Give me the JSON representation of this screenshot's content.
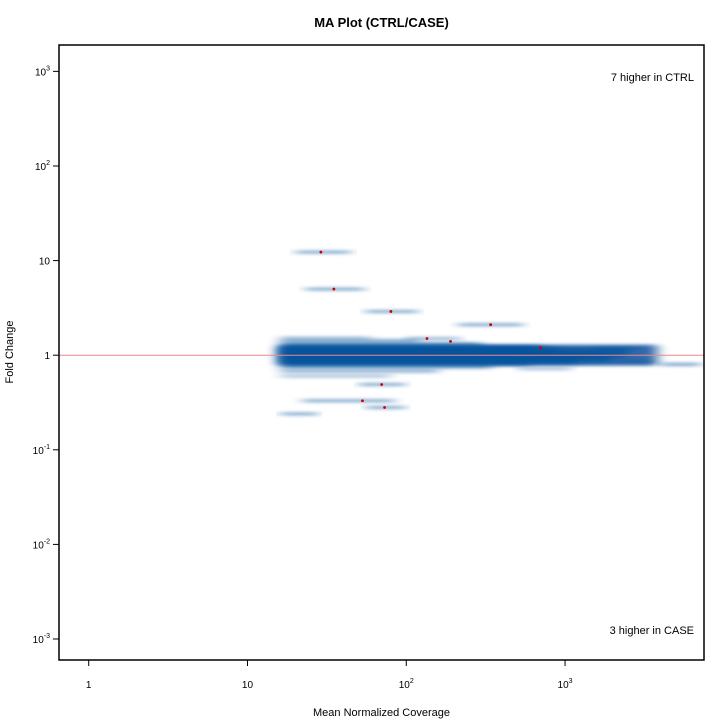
{
  "chart_data": {
    "type": "scatter",
    "title": "MA Plot (CTRL/CASE)",
    "xlabel": "Mean Normalized Coverage",
    "ylabel": "Fold Change",
    "x_scale": "log",
    "y_scale": "log",
    "xlim": [
      0.65,
      7500
    ],
    "ylim": [
      0.0006,
      1900
    ],
    "x_ticks": [
      {
        "value": 1,
        "base": "1",
        "exp": ""
      },
      {
        "value": 10,
        "base": "10",
        "exp": ""
      },
      {
        "value": 100,
        "base": "10",
        "exp": "2"
      },
      {
        "value": 1000,
        "base": "10",
        "exp": "3"
      }
    ],
    "y_ticks": [
      {
        "value": 0.001,
        "base": "10",
        "exp": "-3"
      },
      {
        "value": 0.01,
        "base": "10",
        "exp": "-2"
      },
      {
        "value": 0.1,
        "base": "10",
        "exp": "-1"
      },
      {
        "value": 1,
        "base": "1",
        "exp": ""
      },
      {
        "value": 10,
        "base": "10",
        "exp": ""
      },
      {
        "value": 100,
        "base": "10",
        "exp": "2"
      },
      {
        "value": 1000,
        "base": "10",
        "exp": "3"
      }
    ],
    "reference_line": {
      "y": 1,
      "color": "#ee8888"
    },
    "annotations": {
      "upper": "7 higher in CTRL",
      "lower": "3 higher in CASE"
    },
    "highlighted_points": [
      {
        "x": 29,
        "y": 12.3
      },
      {
        "x": 35,
        "y": 5.0
      },
      {
        "x": 80,
        "y": 2.9
      },
      {
        "x": 135,
        "y": 1.5
      },
      {
        "x": 190,
        "y": 1.4
      },
      {
        "x": 340,
        "y": 2.1
      },
      {
        "x": 700,
        "y": 1.2
      },
      {
        "x": 70,
        "y": 0.49
      },
      {
        "x": 53,
        "y": 0.33
      },
      {
        "x": 73,
        "y": 0.28
      }
    ],
    "density_segments": [
      {
        "x1": 16,
        "x2": 3800,
        "y": 1.0,
        "w": 0.11,
        "o": 0.85
      },
      {
        "x1": 16,
        "x2": 2500,
        "y": 1.06,
        "w": 0.05,
        "o": 0.7
      },
      {
        "x1": 16,
        "x2": 2000,
        "y": 0.94,
        "w": 0.05,
        "o": 0.7
      },
      {
        "x1": 16,
        "x2": 900,
        "y": 1.12,
        "w": 0.04,
        "o": 0.6
      },
      {
        "x1": 16,
        "x2": 1200,
        "y": 0.88,
        "w": 0.04,
        "o": 0.55
      },
      {
        "x1": 16,
        "x2": 700,
        "y": 1.2,
        "w": 0.03,
        "o": 0.55
      },
      {
        "x1": 16,
        "x2": 600,
        "y": 0.82,
        "w": 0.03,
        "o": 0.5
      },
      {
        "x1": 16,
        "x2": 300,
        "y": 1.3,
        "w": 0.025,
        "o": 0.5
      },
      {
        "x1": 16,
        "x2": 350,
        "y": 0.76,
        "w": 0.025,
        "o": 0.45
      },
      {
        "x1": 16,
        "x2": 120,
        "y": 1.42,
        "w": 0.02,
        "o": 0.45
      },
      {
        "x1": 16,
        "x2": 160,
        "y": 0.68,
        "w": 0.02,
        "o": 0.4
      },
      {
        "x1": 16,
        "x2": 60,
        "y": 1.52,
        "w": 0.015,
        "o": 0.35
      },
      {
        "x1": 16,
        "x2": 80,
        "y": 0.6,
        "w": 0.015,
        "o": 0.35
      },
      {
        "x1": 100,
        "x2": 220,
        "y": 1.5,
        "w": 0.015,
        "o": 0.4
      },
      {
        "x1": 1500,
        "x2": 3000,
        "y": 1.17,
        "w": 0.015,
        "o": 0.45
      },
      {
        "x1": 2000,
        "x2": 3500,
        "y": 0.86,
        "w": 0.015,
        "o": 0.4
      },
      {
        "x1": 4000,
        "x2": 7200,
        "y": 0.8,
        "w": 0.012,
        "o": 0.55
      },
      {
        "x1": 500,
        "x2": 1100,
        "y": 0.72,
        "w": 0.012,
        "o": 0.35
      },
      {
        "x1": 20,
        "x2": 45,
        "y": 12.3,
        "w": 0.012,
        "o": 0.5
      },
      {
        "x1": 23,
        "x2": 55,
        "y": 5.0,
        "w": 0.012,
        "o": 0.5
      },
      {
        "x1": 55,
        "x2": 120,
        "y": 2.9,
        "w": 0.012,
        "o": 0.5
      },
      {
        "x1": 210,
        "x2": 550,
        "y": 2.1,
        "w": 0.012,
        "o": 0.5
      },
      {
        "x1": 50,
        "x2": 100,
        "y": 0.49,
        "w": 0.012,
        "o": 0.5
      },
      {
        "x1": 22,
        "x2": 85,
        "y": 0.33,
        "w": 0.012,
        "o": 0.5
      },
      {
        "x1": 55,
        "x2": 100,
        "y": 0.28,
        "w": 0.012,
        "o": 0.5
      },
      {
        "x1": 16,
        "x2": 28,
        "y": 0.24,
        "w": 0.012,
        "o": 0.5
      }
    ],
    "colors": {
      "density": "#08519c",
      "point": "#cc0000",
      "reference": "#ee8888",
      "frame": "#000000"
    }
  }
}
